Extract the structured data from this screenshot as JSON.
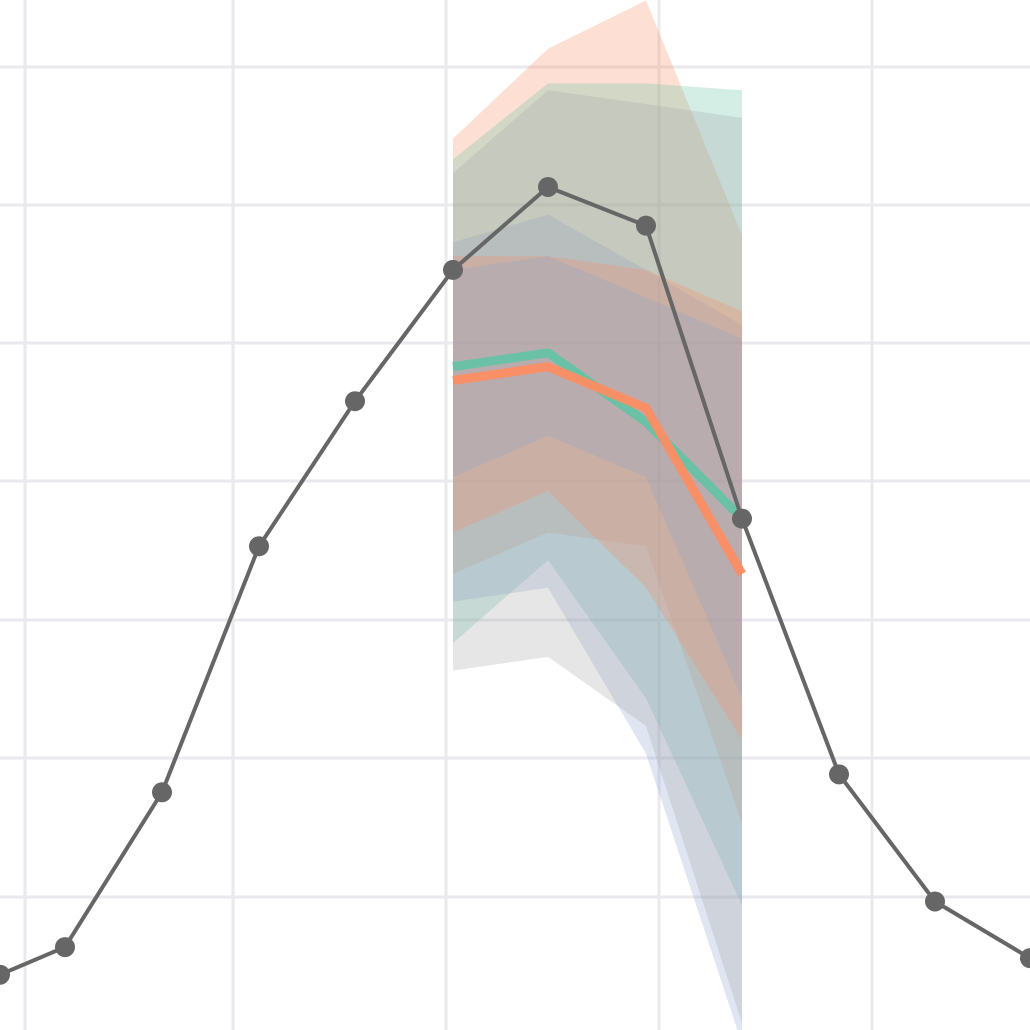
{
  "chart_data": {
    "type": "line",
    "title": "",
    "xlabel": "",
    "ylabel": "",
    "grid": true,
    "legend": "none",
    "xlim": [
      0.5,
      11.05
    ],
    "ylim": [
      0,
      7.45
    ],
    "x": [
      0.5,
      1,
      2,
      3,
      4,
      5,
      6,
      7,
      8,
      9,
      10,
      11
    ],
    "series": [
      {
        "role": "observed",
        "color": "#666666",
        "x": [
          0.5,
          1,
          2,
          3,
          4,
          5,
          6,
          7,
          8,
          9,
          10,
          11
        ],
        "values": [
          0.4,
          0.6,
          1.72,
          3.5,
          4.55,
          5.5,
          6.1,
          5.82,
          3.7,
          1.85,
          0.93,
          0.52
        ]
      },
      {
        "role": "forecast",
        "color": "#66c2a5",
        "x": [
          5,
          6,
          7,
          8
        ],
        "values": [
          4.8,
          4.9,
          4.4,
          3.7
        ]
      },
      {
        "role": "forecast",
        "color": "#fc8d62",
        "x": [
          5,
          6,
          7,
          8
        ],
        "values": [
          4.7,
          4.8,
          4.5,
          3.3
        ]
      }
    ],
    "bands": [
      {
        "color": "#fc8d62",
        "x": [
          5,
          6,
          7,
          8
        ],
        "lower": [
          3.3,
          3.6,
          3.5,
          1.5
        ],
        "upper": [
          6.45,
          7.1,
          7.45,
          5.75
        ]
      },
      {
        "color": "#66c2a5",
        "x": [
          5,
          6,
          7,
          8
        ],
        "lower": [
          2.8,
          3.4,
          2.4,
          0.9
        ],
        "upper": [
          6.3,
          6.85,
          6.85,
          6.8
        ]
      },
      {
        "color": "#8da0cb",
        "x": [
          5,
          6,
          7,
          8
        ],
        "lower": [
          3.1,
          3.2,
          2.0,
          -0.1
        ],
        "upper": [
          5.7,
          5.9,
          5.5,
          5.1
        ]
      },
      {
        "color": "#a6a6a6",
        "x": [
          5,
          6,
          7,
          8
        ],
        "lower": [
          2.6,
          2.7,
          2.2,
          0.05
        ],
        "upper": [
          6.2,
          6.8,
          6.7,
          6.6
        ]
      },
      {
        "color": "#fc8d62",
        "x": [
          5,
          6,
          7,
          8
        ],
        "lower": [
          3.6,
          3.9,
          3.2,
          2.1
        ],
        "upper": [
          5.6,
          5.6,
          5.5,
          5.2
        ]
      },
      {
        "color": "#8da0cb",
        "x": [
          5,
          6,
          7,
          8
        ],
        "lower": [
          4.0,
          4.3,
          4.0,
          2.4
        ],
        "upper": [
          5.5,
          5.6,
          5.3,
          5.0
        ]
      }
    ]
  }
}
